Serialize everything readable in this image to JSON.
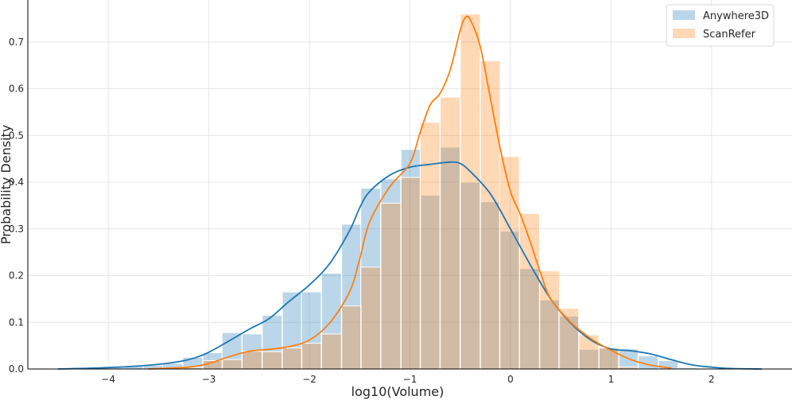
{
  "chart_data": {
    "type": "bar",
    "xlabel": "log10(Volume)",
    "ylabel": "Probability Density",
    "xlim": [
      -4.8,
      2.8
    ],
    "ylim": [
      0,
      0.79
    ],
    "xticks": [
      -4,
      -3,
      -2,
      -1,
      0,
      1,
      2
    ],
    "xtick_labels": [
      "−4",
      "−3",
      "−2",
      "−1",
      "0",
      "1",
      "2"
    ],
    "yticks": [
      0.0,
      0.1,
      0.2,
      0.3,
      0.4,
      0.5,
      0.6,
      0.7
    ],
    "ytick_labels": [
      "0.0",
      "0.1",
      "0.2",
      "0.3",
      "0.4",
      "0.5",
      "0.6",
      "0.7"
    ],
    "grid": true,
    "legend_position": "top-right",
    "bin_width": 0.197,
    "series": [
      {
        "name": "Anywhere3D",
        "color": "#1f77b4",
        "bins": [
          [
            -4.34,
            0.002
          ],
          [
            -4.14,
            0.003
          ],
          [
            -3.95,
            0.004
          ],
          [
            -3.75,
            0.006
          ],
          [
            -3.55,
            0.008
          ],
          [
            -3.36,
            0.012
          ],
          [
            -3.16,
            0.025
          ],
          [
            -2.96,
            0.035
          ],
          [
            -2.77,
            0.078
          ],
          [
            -2.57,
            0.075
          ],
          [
            -2.37,
            0.115
          ],
          [
            -2.17,
            0.165
          ],
          [
            -1.98,
            0.165
          ],
          [
            -1.78,
            0.205
          ],
          [
            -1.58,
            0.31
          ],
          [
            -1.39,
            0.387
          ],
          [
            -1.19,
            0.407
          ],
          [
            -0.99,
            0.47
          ],
          [
            -0.8,
            0.372
          ],
          [
            -0.6,
            0.475
          ],
          [
            -0.4,
            0.4
          ],
          [
            -0.2,
            0.358
          ],
          [
            -0.01,
            0.295
          ],
          [
            0.19,
            0.215
          ],
          [
            0.39,
            0.148
          ],
          [
            0.58,
            0.113
          ],
          [
            0.78,
            0.042
          ],
          [
            0.98,
            0.046
          ],
          [
            1.17,
            0.043
          ],
          [
            1.37,
            0.028
          ],
          [
            1.57,
            0.018
          ],
          [
            1.76,
            0.003
          ]
        ],
        "kde_x": [
          -4.5,
          -4.0,
          -3.5,
          -3.2,
          -3.0,
          -2.8,
          -2.6,
          -2.4,
          -2.2,
          -2.0,
          -1.8,
          -1.6,
          -1.5,
          -1.4,
          -1.2,
          -1.0,
          -0.8,
          -0.6,
          -0.5,
          -0.4,
          -0.2,
          0.0,
          0.2,
          0.4,
          0.6,
          0.8,
          1.0,
          1.2,
          1.4,
          1.6,
          1.8,
          2.0,
          2.2,
          2.5
        ],
        "kde_y": [
          0.0,
          0.003,
          0.01,
          0.02,
          0.036,
          0.06,
          0.085,
          0.108,
          0.145,
          0.18,
          0.225,
          0.296,
          0.345,
          0.38,
          0.415,
          0.432,
          0.438,
          0.443,
          0.44,
          0.423,
          0.375,
          0.3,
          0.222,
          0.15,
          0.098,
          0.062,
          0.043,
          0.039,
          0.032,
          0.02,
          0.009,
          0.004,
          0.001,
          0.0
        ]
      },
      {
        "name": "ScanRefer",
        "color": "#ff7f0e",
        "bins": [
          [
            -3.16,
            0.003
          ],
          [
            -2.96,
            0.018
          ],
          [
            -2.77,
            0.02
          ],
          [
            -2.57,
            0.038
          ],
          [
            -2.37,
            0.037
          ],
          [
            -2.17,
            0.045
          ],
          [
            -1.98,
            0.055
          ],
          [
            -1.78,
            0.075
          ],
          [
            -1.58,
            0.135
          ],
          [
            -1.39,
            0.218
          ],
          [
            -1.19,
            0.355
          ],
          [
            -0.99,
            0.41
          ],
          [
            -0.8,
            0.528
          ],
          [
            -0.6,
            0.582
          ],
          [
            -0.4,
            0.76
          ],
          [
            -0.2,
            0.66
          ],
          [
            -0.01,
            0.455
          ],
          [
            0.19,
            0.333
          ],
          [
            0.39,
            0.21
          ],
          [
            0.58,
            0.13
          ],
          [
            0.78,
            0.073
          ],
          [
            0.98,
            0.045
          ],
          [
            1.17,
            0.004
          ]
        ],
        "kde_x": [
          -3.6,
          -3.2,
          -3.0,
          -2.8,
          -2.6,
          -2.4,
          -2.2,
          -2.0,
          -1.8,
          -1.6,
          -1.5,
          -1.4,
          -1.2,
          -1.0,
          -0.9,
          -0.8,
          -0.7,
          -0.6,
          -0.5,
          -0.45,
          -0.4,
          -0.3,
          -0.2,
          -0.1,
          0.0,
          0.1,
          0.2,
          0.3,
          0.4,
          0.6,
          0.8,
          1.0,
          1.2,
          1.4,
          1.6
        ],
        "kde_y": [
          0.0,
          0.004,
          0.012,
          0.026,
          0.038,
          0.042,
          0.048,
          0.062,
          0.098,
          0.165,
          0.235,
          0.315,
          0.39,
          0.44,
          0.505,
          0.565,
          0.59,
          0.64,
          0.725,
          0.752,
          0.748,
          0.69,
          0.58,
          0.47,
          0.38,
          0.33,
          0.27,
          0.205,
          0.15,
          0.1,
          0.065,
          0.04,
          0.02,
          0.008,
          0.002
        ]
      }
    ]
  }
}
